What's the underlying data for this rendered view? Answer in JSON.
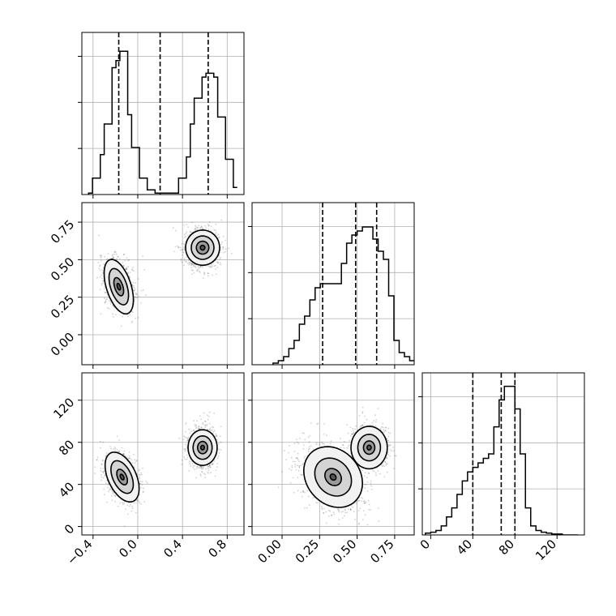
{
  "chart_data": {
    "type": "corner",
    "grid": true,
    "legend": "none",
    "parameters": [
      {
        "ticks": [
          -0.4,
          0.0,
          0.4,
          0.8
        ],
        "tick_labels": [
          "−0.4",
          "0.0",
          "0.4",
          "0.8"
        ],
        "range": [
          -0.5,
          0.95
        ]
      },
      {
        "ticks": [
          0.0,
          0.25,
          0.5,
          0.75
        ],
        "tick_labels": [
          "0.00",
          "0.25",
          "0.50",
          "0.75"
        ],
        "range": [
          -0.2,
          0.88
        ]
      },
      {
        "ticks": [
          0,
          40,
          80,
          120
        ],
        "tick_labels": [
          "0",
          "40",
          "80",
          "120"
        ],
        "range": [
          -8,
          146
        ]
      }
    ],
    "histograms": [
      {
        "bin_edges": [
          -0.44,
          -0.405,
          -0.37,
          -0.335,
          -0.3,
          -0.265,
          -0.23,
          -0.195,
          -0.16,
          -0.125,
          -0.09,
          -0.055,
          -0.02,
          0.015,
          0.05,
          0.085,
          0.12,
          0.155,
          0.19,
          0.225,
          0.26,
          0.295,
          0.33,
          0.365,
          0.4,
          0.435,
          0.47,
          0.505,
          0.54,
          0.575,
          0.61,
          0.645,
          0.68,
          0.715,
          0.75,
          0.785,
          0.82,
          0.855,
          0.89
        ],
        "counts": [
          3,
          35,
          35,
          85,
          150,
          150,
          270,
          285,
          305,
          305,
          170,
          100,
          100,
          35,
          35,
          10,
          10,
          3,
          3,
          3,
          3,
          3,
          3,
          35,
          35,
          80,
          150,
          205,
          205,
          250,
          258,
          258,
          250,
          165,
          165,
          75,
          75,
          15
        ],
        "ylim": [
          0,
          345
        ],
        "quantiles": [
          -0.17,
          0.2,
          0.63
        ]
      },
      {
        "bin_edges": [
          -0.06,
          -0.025,
          0.01,
          0.045,
          0.08,
          0.115,
          0.15,
          0.185,
          0.22,
          0.255,
          0.29,
          0.325,
          0.36,
          0.395,
          0.43,
          0.465,
          0.5,
          0.535,
          0.57,
          0.605,
          0.64,
          0.675,
          0.71,
          0.745,
          0.78,
          0.815,
          0.85,
          0.88
        ],
        "counts": [
          2,
          5,
          10,
          20,
          30,
          50,
          60,
          80,
          95,
          100,
          100,
          100,
          100,
          125,
          150,
          160,
          165,
          170,
          170,
          155,
          140,
          130,
          85,
          30,
          15,
          10,
          5
        ],
        "ylim": [
          0,
          200
        ],
        "quantiles": [
          0.27,
          0.49,
          0.63
        ]
      },
      {
        "bin_edges": [
          -5,
          0,
          5,
          10,
          15,
          20,
          25,
          30,
          35,
          40,
          45,
          50,
          55,
          60,
          65,
          70,
          75,
          80,
          85,
          90,
          95,
          100,
          105,
          110,
          115,
          120,
          125,
          130,
          135,
          140
        ],
        "counts": [
          2,
          3,
          5,
          10,
          20,
          30,
          45,
          60,
          70,
          75,
          80,
          85,
          90,
          120,
          150,
          165,
          165,
          140,
          90,
          30,
          10,
          5,
          3,
          2,
          1,
          1,
          0,
          0,
          0
        ],
        "ylim": [
          0,
          180
        ],
        "quantiles": [
          40,
          67,
          80
        ]
      }
    ],
    "panels": [
      {
        "x": 0,
        "y": 1,
        "modes": [
          {
            "cx": -0.17,
            "cy": 0.33,
            "sx": 0.075,
            "sy": 0.16,
            "rot": 72,
            "n": 900
          },
          {
            "cx": 0.58,
            "cy": 0.57,
            "sx": 0.1,
            "sy": 0.11,
            "rot": 0,
            "n": 900
          }
        ],
        "contours": [
          {
            "cx": -0.17,
            "cy": 0.32,
            "sx": 0.07,
            "sy": 0.175,
            "rot": 72,
            "levels": [
              1.5,
              1.0,
              0.5,
              0.18
            ]
          },
          {
            "cx": 0.58,
            "cy": 0.58,
            "sx": 0.1,
            "sy": 0.105,
            "rot": 0,
            "levels": [
              1.5,
              1.0,
              0.55,
              0.2
            ]
          }
        ]
      },
      {
        "x": 0,
        "y": 2,
        "modes": [
          {
            "cx": -0.15,
            "cy": 47,
            "sx": 0.08,
            "sy": 22,
            "rot": 65,
            "n": 900
          },
          {
            "cx": 0.58,
            "cy": 75,
            "sx": 0.1,
            "sy": 12,
            "rot": 0,
            "n": 900
          }
        ],
        "contours": [
          {
            "cx": -0.14,
            "cy": 47,
            "sx": 0.075,
            "sy": 22,
            "rot": 65,
            "levels": [
              1.6,
              1.05,
              0.5,
              0.18
            ]
          },
          {
            "cx": 0.58,
            "cy": 75,
            "sx": 0.095,
            "sy": 12,
            "rot": 0,
            "levels": [
              1.6,
              1.05,
              0.55,
              0.2
            ]
          }
        ]
      },
      {
        "x": 1,
        "y": 2,
        "modes": [
          {
            "cx": 0.33,
            "cy": 45,
            "sx": 0.14,
            "sy": 22,
            "rot": -40,
            "n": 1100
          },
          {
            "cx": 0.58,
            "cy": 75,
            "sx": 0.11,
            "sy": 12,
            "rot": 0,
            "n": 900
          }
        ],
        "contours": [
          {
            "cx": 0.34,
            "cy": 47,
            "sx": 0.13,
            "sy": 22,
            "rot": -40,
            "levels": [
              1.6,
              1.0,
              0.45,
              0.16
            ]
          },
          {
            "cx": 0.58,
            "cy": 75,
            "sx": 0.105,
            "sy": 12,
            "rot": 0,
            "levels": [
              1.6,
              1.0,
              0.5,
              0.18
            ]
          }
        ]
      }
    ]
  }
}
